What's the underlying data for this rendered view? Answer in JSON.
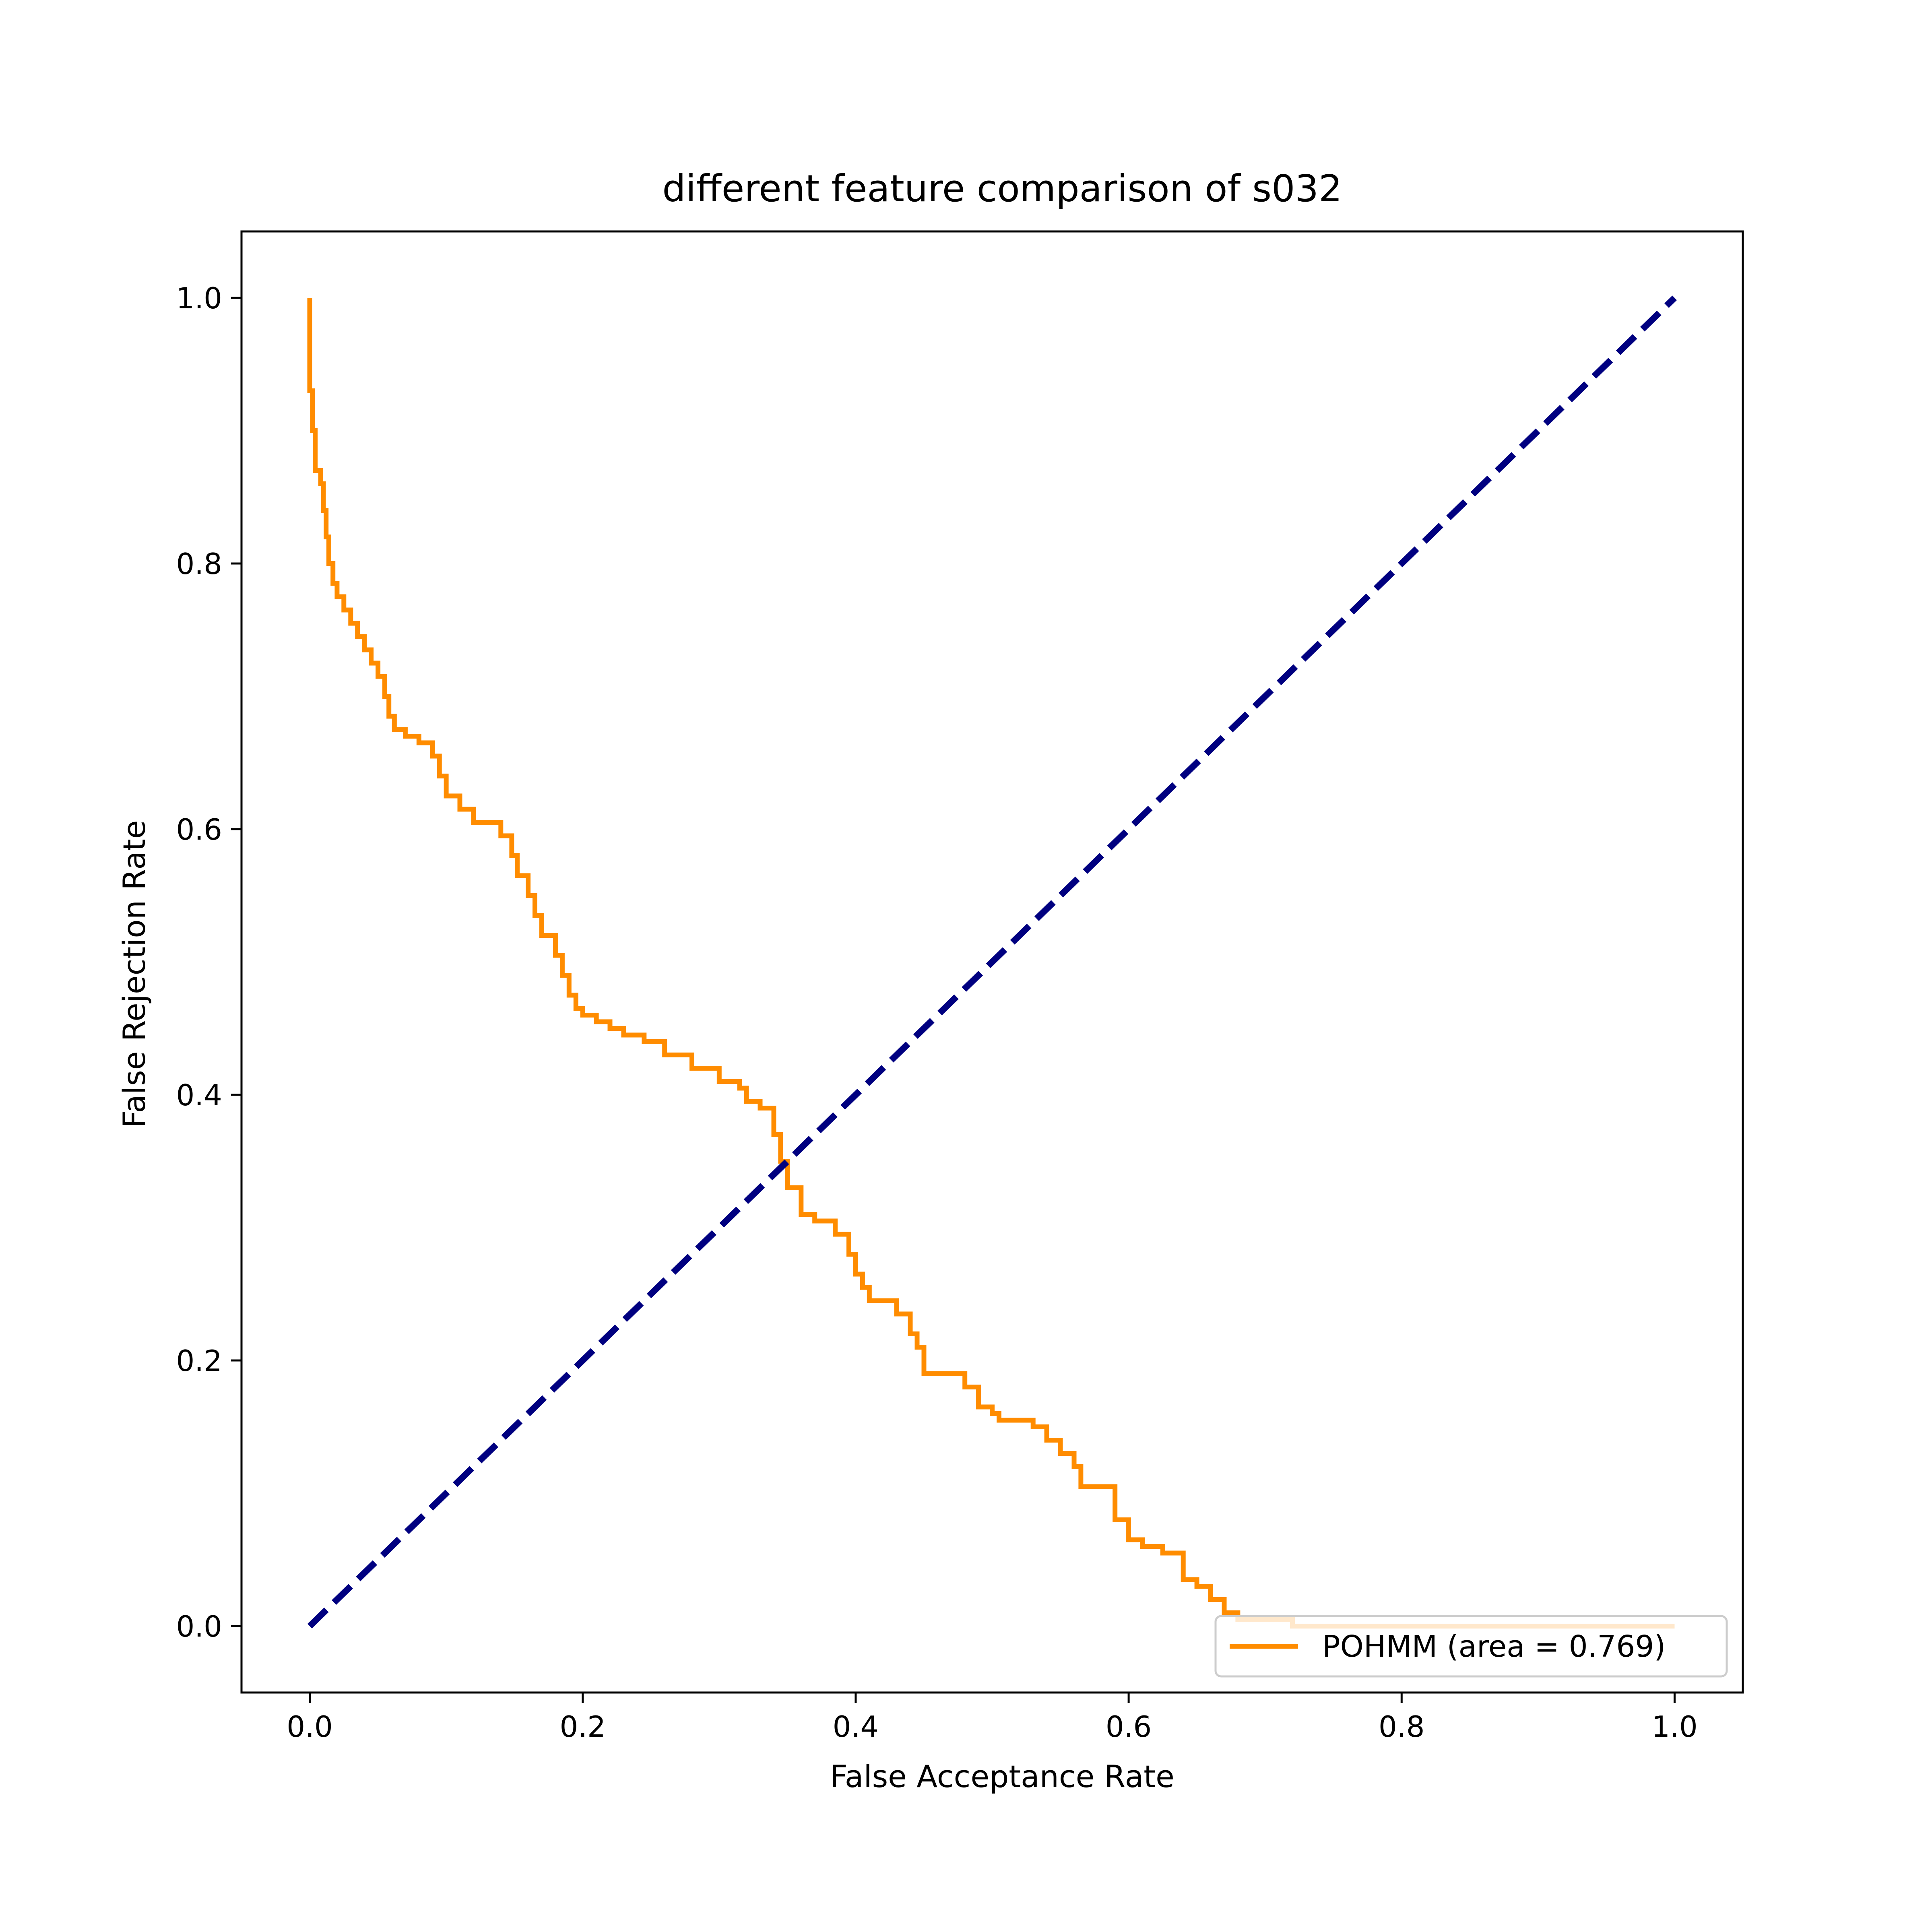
{
  "chart_data": {
    "type": "line",
    "title": "different feature comparison of s032",
    "xlabel": "False Acceptance Rate",
    "ylabel": "False Rejection Rate",
    "xlim": [
      -0.05,
      1.05
    ],
    "ylim": [
      -0.05,
      1.05
    ],
    "xticks": [
      0.0,
      0.2,
      0.4,
      0.6,
      0.8,
      1.0
    ],
    "yticks": [
      0.0,
      0.2,
      0.4,
      0.6,
      0.8,
      1.0
    ],
    "xtick_labels": [
      "0.0",
      "0.2",
      "0.4",
      "0.6",
      "0.8",
      "1.0"
    ],
    "ytick_labels": [
      "0.0",
      "0.2",
      "0.4",
      "0.6",
      "0.8",
      "1.0"
    ],
    "legend_position": "lower-right",
    "grid": false,
    "series": [
      {
        "name": "POHMM (area = 0.769)",
        "color": "#ff8c00",
        "style": "solid",
        "step": true,
        "points": [
          [
            0.0,
            1.0
          ],
          [
            0.0,
            0.93
          ],
          [
            0.002,
            0.9
          ],
          [
            0.004,
            0.87
          ],
          [
            0.008,
            0.86
          ],
          [
            0.01,
            0.84
          ],
          [
            0.012,
            0.82
          ],
          [
            0.014,
            0.8
          ],
          [
            0.017,
            0.785
          ],
          [
            0.02,
            0.775
          ],
          [
            0.025,
            0.765
          ],
          [
            0.03,
            0.755
          ],
          [
            0.035,
            0.745
          ],
          [
            0.04,
            0.735
          ],
          [
            0.045,
            0.725
          ],
          [
            0.05,
            0.715
          ],
          [
            0.055,
            0.7
          ],
          [
            0.058,
            0.685
          ],
          [
            0.062,
            0.675
          ],
          [
            0.07,
            0.67
          ],
          [
            0.08,
            0.665
          ],
          [
            0.09,
            0.655
          ],
          [
            0.095,
            0.64
          ],
          [
            0.1,
            0.625
          ],
          [
            0.11,
            0.615
          ],
          [
            0.12,
            0.605
          ],
          [
            0.13,
            0.605
          ],
          [
            0.14,
            0.595
          ],
          [
            0.148,
            0.58
          ],
          [
            0.152,
            0.565
          ],
          [
            0.16,
            0.55
          ],
          [
            0.165,
            0.535
          ],
          [
            0.17,
            0.52
          ],
          [
            0.18,
            0.505
          ],
          [
            0.185,
            0.49
          ],
          [
            0.19,
            0.475
          ],
          [
            0.195,
            0.465
          ],
          [
            0.2,
            0.46
          ],
          [
            0.21,
            0.455
          ],
          [
            0.22,
            0.45
          ],
          [
            0.23,
            0.445
          ],
          [
            0.245,
            0.44
          ],
          [
            0.26,
            0.43
          ],
          [
            0.28,
            0.42
          ],
          [
            0.3,
            0.41
          ],
          [
            0.315,
            0.405
          ],
          [
            0.32,
            0.395
          ],
          [
            0.33,
            0.39
          ],
          [
            0.34,
            0.37
          ],
          [
            0.345,
            0.35
          ],
          [
            0.35,
            0.33
          ],
          [
            0.36,
            0.31
          ],
          [
            0.37,
            0.305
          ],
          [
            0.385,
            0.295
          ],
          [
            0.395,
            0.28
          ],
          [
            0.4,
            0.265
          ],
          [
            0.405,
            0.255
          ],
          [
            0.41,
            0.245
          ],
          [
            0.43,
            0.235
          ],
          [
            0.44,
            0.22
          ],
          [
            0.445,
            0.21
          ],
          [
            0.45,
            0.19
          ],
          [
            0.47,
            0.19
          ],
          [
            0.48,
            0.18
          ],
          [
            0.49,
            0.165
          ],
          [
            0.5,
            0.16
          ],
          [
            0.505,
            0.155
          ],
          [
            0.53,
            0.15
          ],
          [
            0.54,
            0.14
          ],
          [
            0.55,
            0.13
          ],
          [
            0.56,
            0.12
          ],
          [
            0.565,
            0.105
          ],
          [
            0.585,
            0.105
          ],
          [
            0.59,
            0.08
          ],
          [
            0.6,
            0.065
          ],
          [
            0.61,
            0.06
          ],
          [
            0.625,
            0.055
          ],
          [
            0.64,
            0.035
          ],
          [
            0.65,
            0.03
          ],
          [
            0.66,
            0.02
          ],
          [
            0.67,
            0.01
          ],
          [
            0.68,
            0.005
          ],
          [
            0.7,
            0.005
          ],
          [
            0.72,
            0.0
          ],
          [
            1.0,
            0.0
          ]
        ]
      },
      {
        "name": "",
        "color": "#000080",
        "style": "dashed",
        "step": false,
        "points": [
          [
            0.0,
            0.0
          ],
          [
            1.0,
            1.0
          ]
        ]
      }
    ],
    "legend": [
      {
        "label": "POHMM (area = 0.769)",
        "color": "#ff8c00"
      }
    ]
  }
}
